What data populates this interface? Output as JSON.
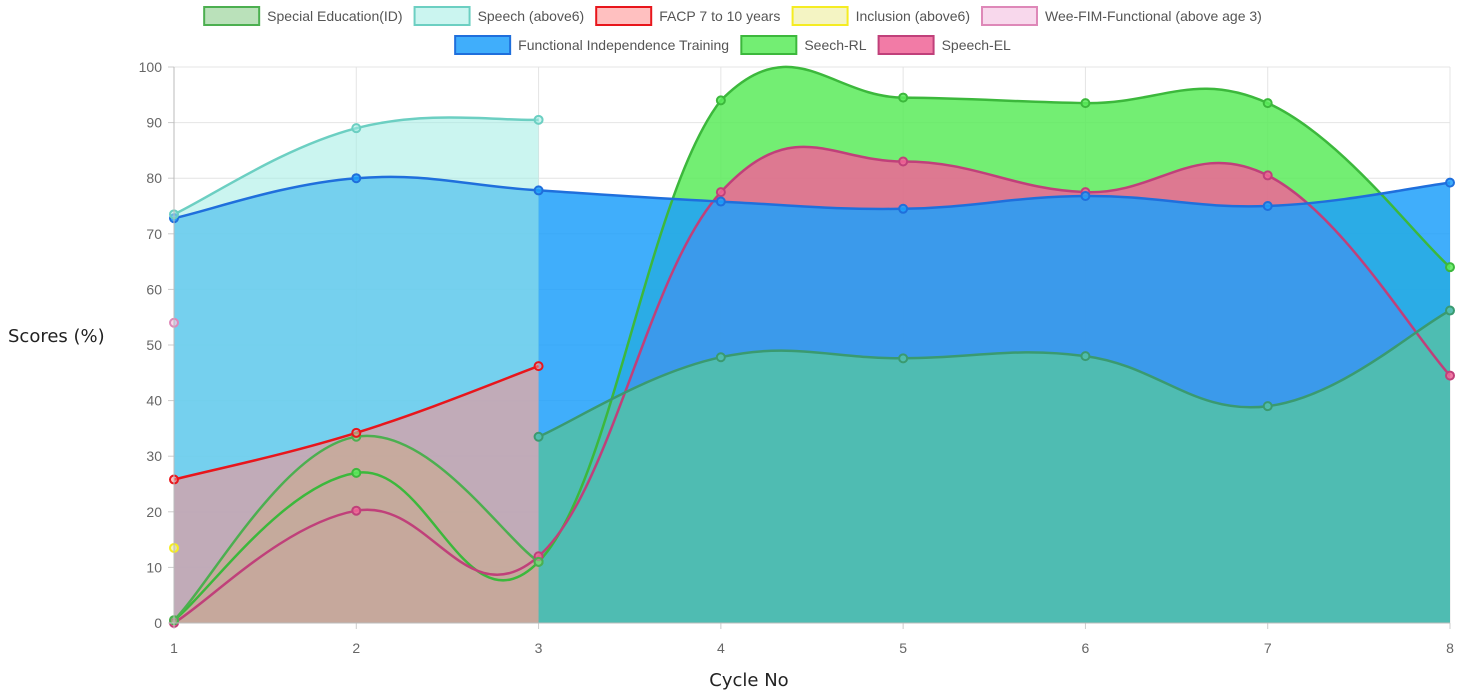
{
  "chart_data": {
    "type": "area",
    "xlabel": "Cycle No",
    "ylabel": "Scores (%)",
    "x": [
      1,
      2,
      3,
      4,
      5,
      6,
      7,
      8
    ],
    "xlim": [
      1,
      8
    ],
    "ylim": [
      0,
      100
    ],
    "yticks": [
      0,
      10,
      20,
      30,
      40,
      50,
      60,
      70,
      80,
      90,
      100
    ],
    "grid": true,
    "legend_position": "top",
    "series": [
      {
        "name": "Special Education(ID)",
        "color": "#4caf50",
        "fill": "rgba(140,205,140,0.6)",
        "values": [
          0.5,
          33.5,
          11,
          null,
          null,
          null,
          null,
          null
        ]
      },
      {
        "name": "Speech (above6)",
        "color": "#6ccfc2",
        "fill": "rgba(160,236,228,0.55)",
        "values": [
          73.5,
          89,
          90.5,
          null,
          null,
          null,
          null,
          null
        ]
      },
      {
        "name": "FACP 7 to 10 years",
        "color": "#e8161c",
        "fill": "rgba(255,140,140,0.55)",
        "values": [
          25.8,
          34.2,
          46.2,
          null,
          null,
          null,
          null,
          null
        ]
      },
      {
        "name": "Inclusion (above6)",
        "color": "#f5ec22",
        "fill": "rgba(240,240,170,0.7)",
        "values": [
          13.5,
          null,
          null,
          null,
          null,
          null,
          null,
          null
        ]
      },
      {
        "name": "Wee-FIM-Functional (above age 3)",
        "color": "#de88b8",
        "fill": "rgba(245,200,228,0.7)",
        "values": [
          54,
          null,
          null,
          null,
          null,
          null,
          null,
          null
        ]
      },
      {
        "name": "Functional Independence Training",
        "color": "#1f6fdc",
        "fill": "rgba(30,160,250,0.85)",
        "values": [
          72.8,
          80,
          77.8,
          75.8,
          74.5,
          76.8,
          75,
          79.2
        ]
      },
      {
        "name": "Seech-RL",
        "color": "#3cb83c",
        "fill": "rgba(90,235,90,0.85)",
        "values": [
          0.5,
          27,
          11,
          94,
          94.5,
          93.5,
          93.5,
          64
        ]
      },
      {
        "name": "Speech-EL",
        "color": "#c0407a",
        "fill": "rgba(240,100,150,0.85)",
        "values": [
          0,
          20.2,
          12,
          77.5,
          83,
          77.5,
          80.5,
          44.5
        ]
      },
      {
        "name": "",
        "color": "#3a9a70",
        "fill": "rgba(80,190,175,0.95)",
        "values": [
          null,
          null,
          33.5,
          47.8,
          47.6,
          48,
          39,
          56.2
        ]
      }
    ]
  }
}
